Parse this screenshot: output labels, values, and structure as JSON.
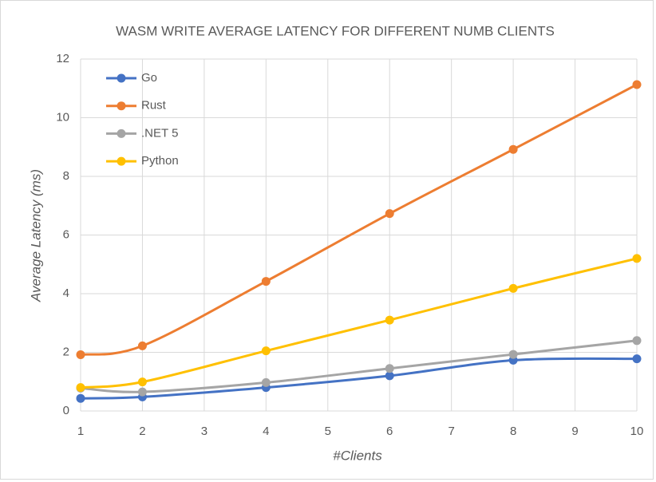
{
  "chart_data": {
    "type": "line",
    "title": "WASM WRITE AVERAGE LATENCY FOR DIFFERENT NUMB CLIENTS",
    "x_label": "#Clients",
    "y_label": "Average Latency (ms)",
    "x": [
      1,
      2,
      4,
      6,
      8,
      10
    ],
    "series": [
      {
        "name": "Go",
        "color": "#4472c4",
        "values": [
          0.43,
          0.48,
          0.8,
          1.2,
          1.73,
          1.78
        ]
      },
      {
        "name": "Rust",
        "color": "#ed7d31",
        "values": [
          1.92,
          2.22,
          4.42,
          6.73,
          8.92,
          11.13
        ]
      },
      {
        "name": ".NET 5",
        "color": "#a5a5a5",
        "values": [
          0.78,
          0.65,
          0.97,
          1.45,
          1.93,
          2.4
        ]
      },
      {
        "name": "Python",
        "color": "#ffc000",
        "values": [
          0.8,
          0.99,
          2.05,
          3.1,
          4.18,
          5.2
        ]
      }
    ],
    "xlim": [
      1,
      10
    ],
    "xticks": [
      1,
      2,
      3,
      4,
      5,
      6,
      7,
      8,
      9,
      10
    ],
    "ylim": [
      0,
      12
    ],
    "yticks": [
      0,
      2,
      4,
      6,
      8,
      10,
      12
    ],
    "grid": true,
    "legend": "top-left",
    "smooth": true
  }
}
